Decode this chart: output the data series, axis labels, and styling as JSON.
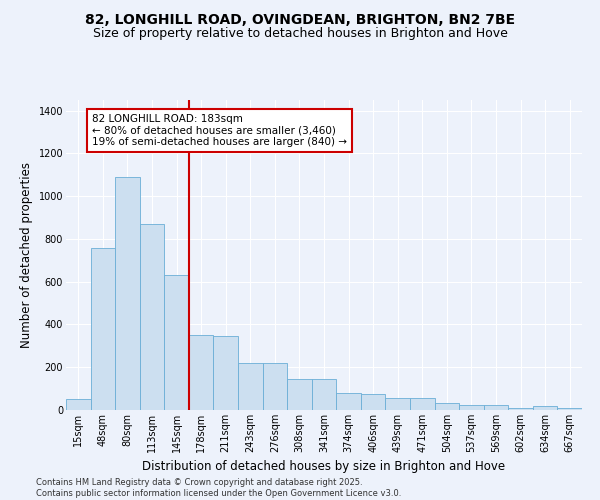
{
  "title_line1": "82, LONGHILL ROAD, OVINGDEAN, BRIGHTON, BN2 7BE",
  "title_line2": "Size of property relative to detached houses in Brighton and Hove",
  "xlabel": "Distribution of detached houses by size in Brighton and Hove",
  "ylabel": "Number of detached properties",
  "categories": [
    "15sqm",
    "48sqm",
    "80sqm",
    "113sqm",
    "145sqm",
    "178sqm",
    "211sqm",
    "243sqm",
    "276sqm",
    "308sqm",
    "341sqm",
    "374sqm",
    "406sqm",
    "439sqm",
    "471sqm",
    "504sqm",
    "537sqm",
    "569sqm",
    "602sqm",
    "634sqm",
    "667sqm"
  ],
  "values": [
    50,
    760,
    1090,
    870,
    630,
    350,
    345,
    220,
    220,
    145,
    145,
    80,
    75,
    55,
    55,
    35,
    25,
    25,
    8,
    18,
    8
  ],
  "bar_color": "#ccdff0",
  "bar_edge_color": "#6aaed6",
  "vline_x_idx": 5,
  "vline_color": "#cc0000",
  "annotation_text": "82 LONGHILL ROAD: 183sqm\n← 80% of detached houses are smaller (3,460)\n19% of semi-detached houses are larger (840) →",
  "annotation_box_color": "#ffffff",
  "annotation_box_edge": "#cc0000",
  "ylim": [
    0,
    1450
  ],
  "yticks": [
    0,
    200,
    400,
    600,
    800,
    1000,
    1200,
    1400
  ],
  "bg_color": "#edf2fb",
  "grid_color": "#ffffff",
  "footer": "Contains HM Land Registry data © Crown copyright and database right 2025.\nContains public sector information licensed under the Open Government Licence v3.0.",
  "title_fontsize": 10,
  "subtitle_fontsize": 9,
  "axis_label_fontsize": 8.5,
  "tick_fontsize": 7,
  "annotation_fontsize": 7.5,
  "footer_fontsize": 6
}
